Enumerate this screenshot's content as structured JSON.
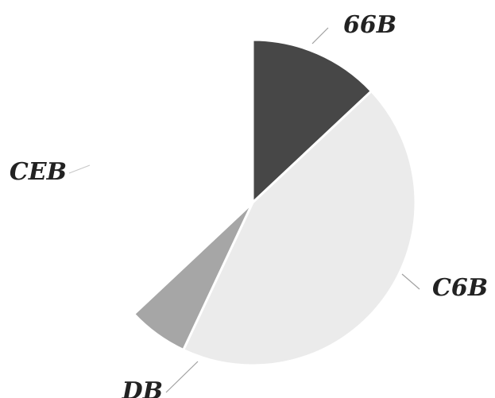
{
  "chart_data": {
    "type": "pie",
    "title": "",
    "start_angle_deg": 0,
    "direction": "clockwise",
    "categories": [
      "66B",
      "C6B",
      "DB",
      "CEB"
    ],
    "values": [
      13,
      44,
      6,
      37
    ],
    "colors": [
      "#474747",
      "#ebebeb",
      "#a6a6a6",
      "#ffffff"
    ],
    "leader_colors": [
      "#a0a0a0",
      "#a0a0a0",
      "#a0a0a0",
      "#c8c8c8"
    ],
    "legend": "none",
    "grid": false,
    "units": "%"
  }
}
